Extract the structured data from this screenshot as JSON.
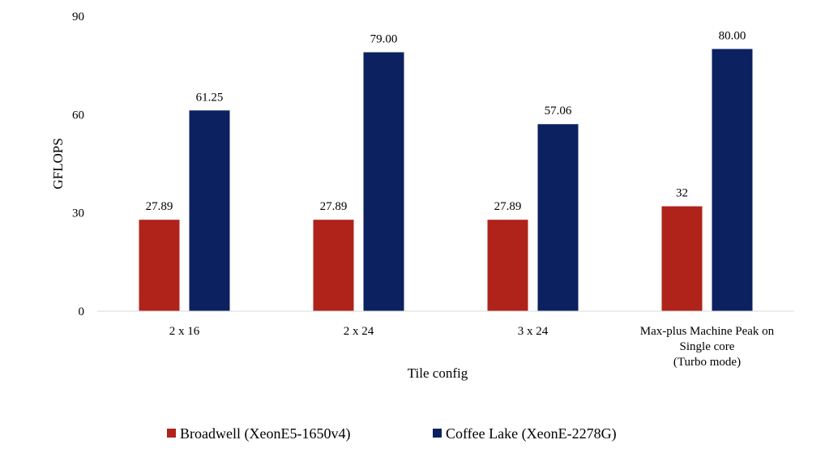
{
  "chart_data": {
    "type": "bar",
    "categories": [
      [
        "2 x 16"
      ],
      [
        "2 x 24"
      ],
      [
        "3 x 24"
      ],
      [
        "Max-plus Machine Peak on",
        "Single core",
        "(Turbo mode)"
      ]
    ],
    "series": [
      {
        "name": "Broadwell (XeonE5-1650v4)",
        "values": [
          27.89,
          27.89,
          27.89,
          32
        ],
        "labels": [
          "27.89",
          "27.89",
          "27.89",
          "32"
        ],
        "color": "#B0231A"
      },
      {
        "name": "Coffee Lake (XeonE-2278G)",
        "values": [
          61.25,
          79.0,
          57.06,
          80.0
        ],
        "labels": [
          "61.25",
          "79.00",
          "57.06",
          "80.00"
        ],
        "color": "#0C2160"
      }
    ],
    "xlabel": "Tile config",
    "ylabel": "GFLOPS",
    "ylim": [
      0,
      90
    ],
    "yticks": [
      0,
      30,
      60,
      90
    ],
    "grid": false,
    "legend_position": "bottom"
  }
}
